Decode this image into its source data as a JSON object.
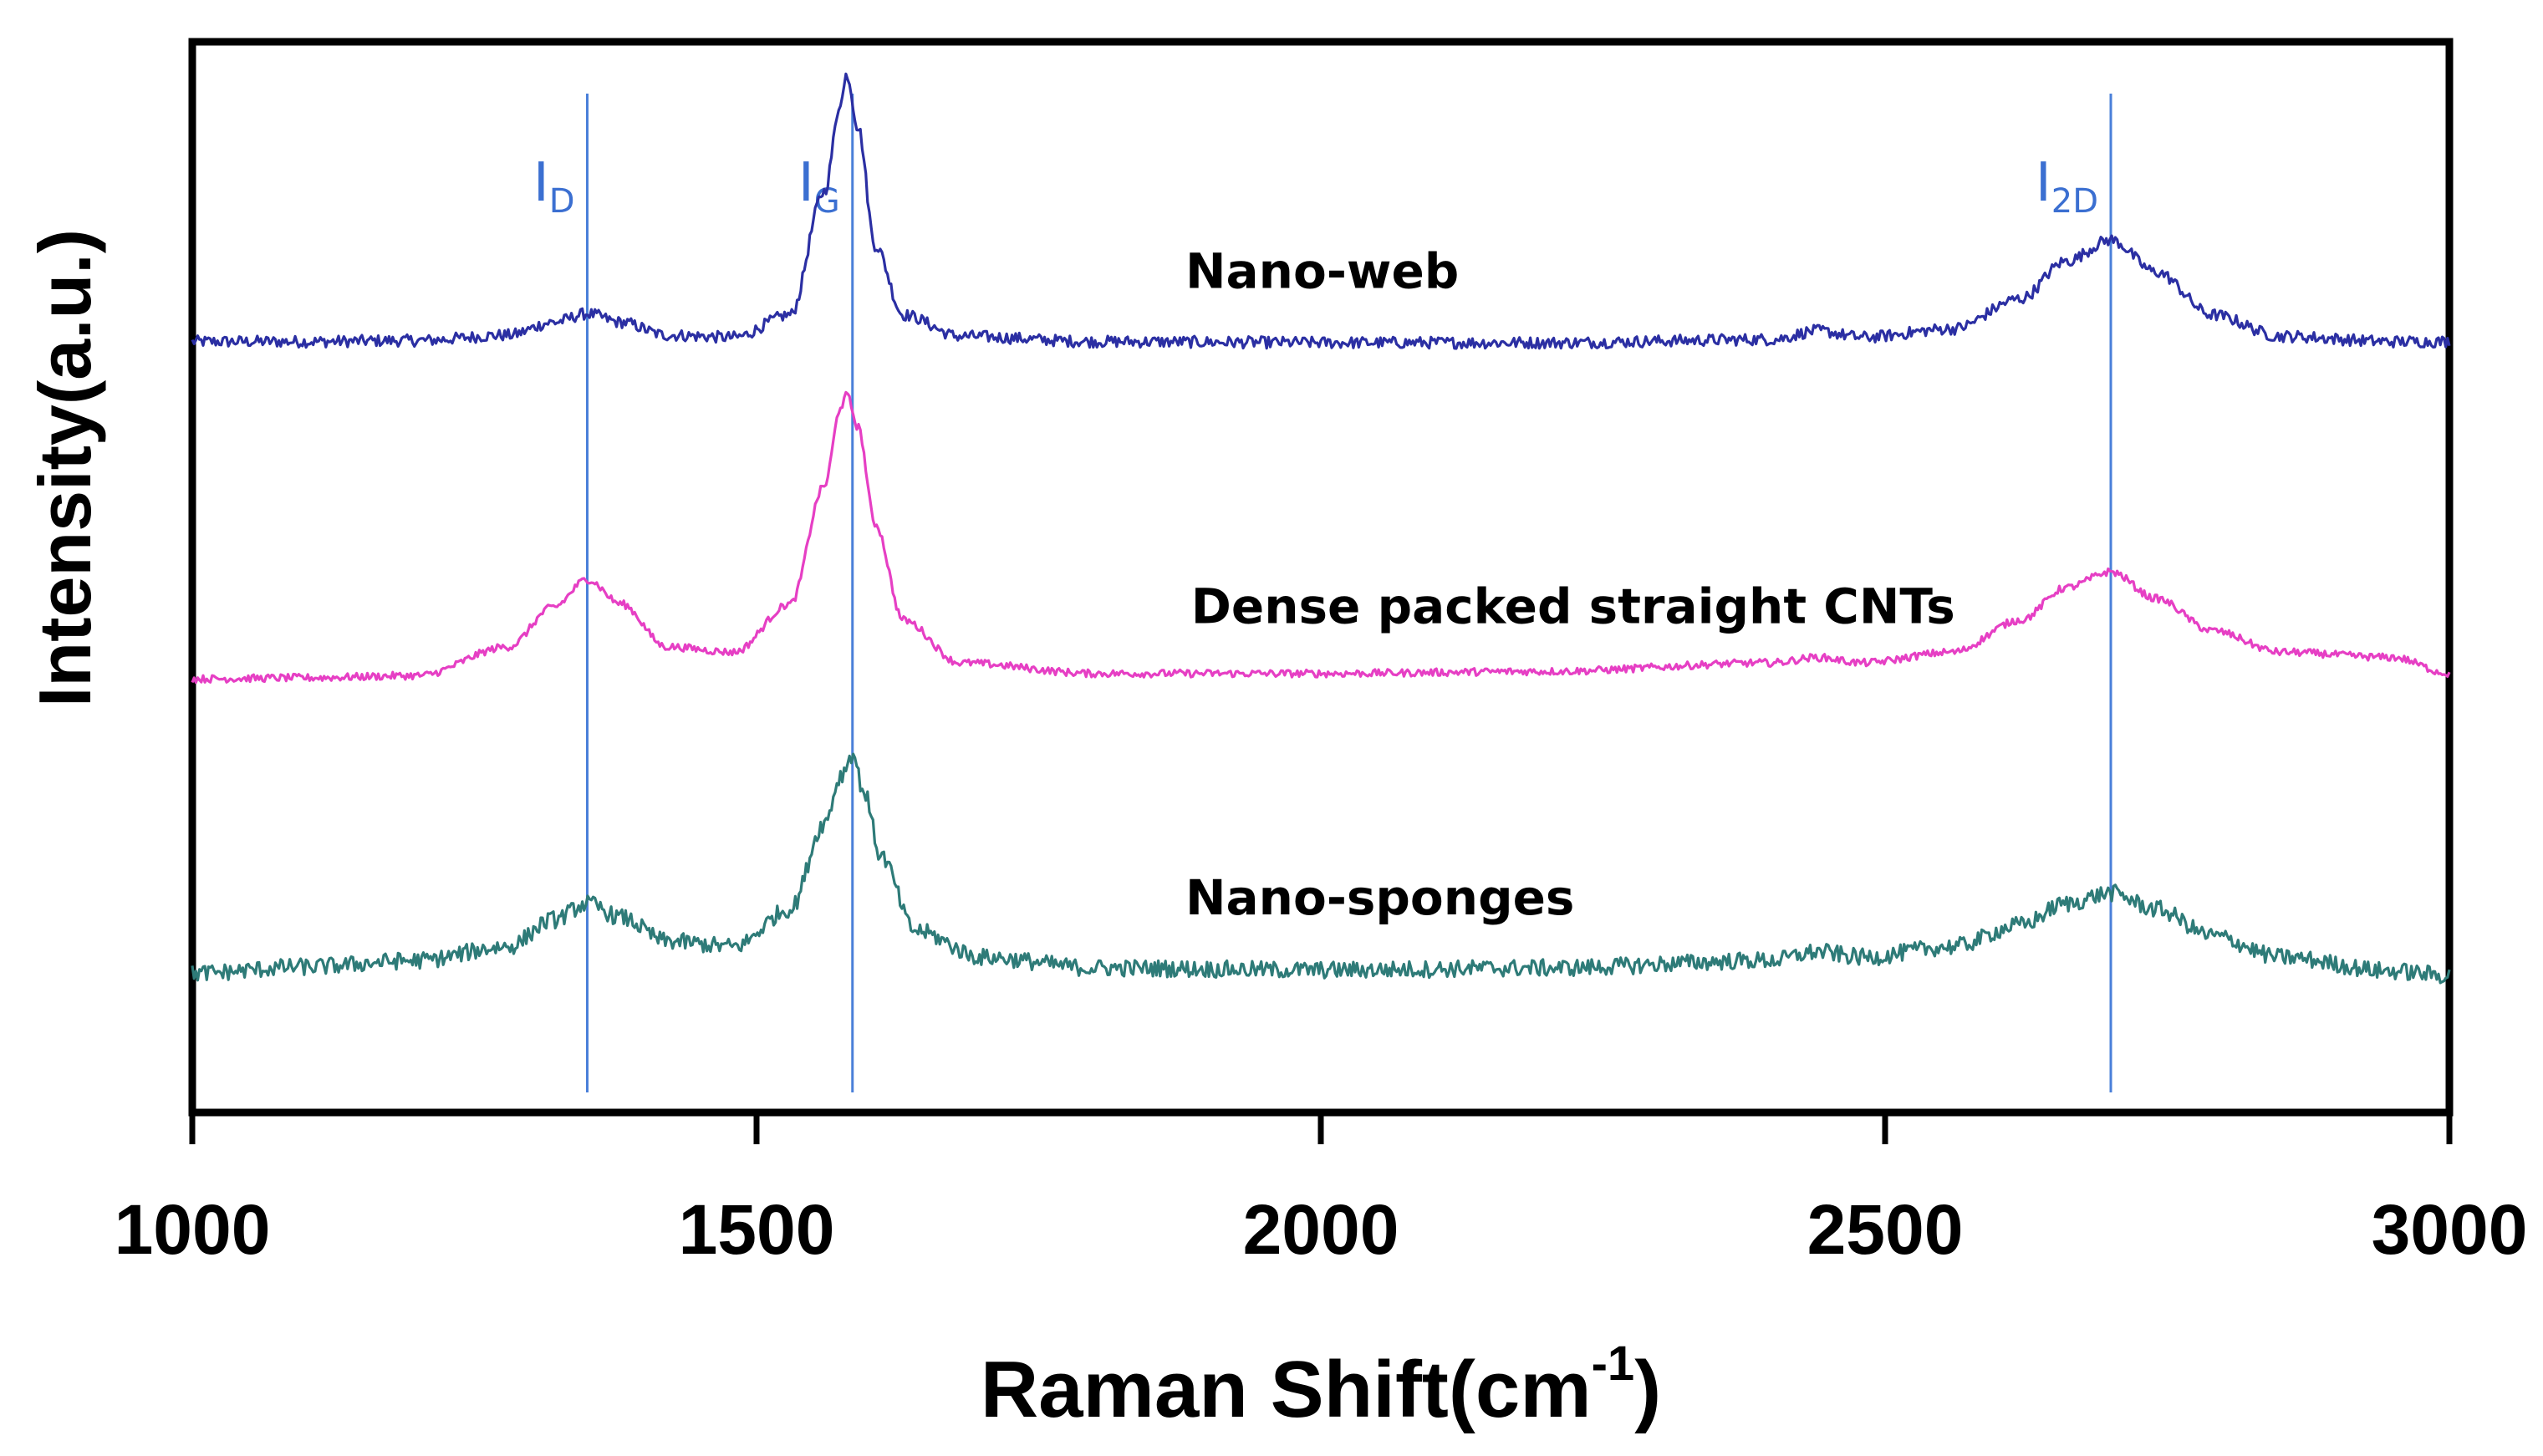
{
  "chart_data": {
    "type": "line",
    "title": "",
    "xlabel": "Raman Shift(cm",
    "xlabel_superscript": "-1",
    "xlabel_suffix": ")",
    "ylabel": "Intensity(a.u.)",
    "xlim": [
      1000,
      3000
    ],
    "ylim": [
      0,
      10
    ],
    "xticks": [
      1000,
      1500,
      2000,
      2500,
      3000
    ],
    "xtick_labels": [
      "1000",
      "1500",
      "2000",
      "2500",
      "3000"
    ],
    "grid": false,
    "peak_lines": [
      {
        "name": "I",
        "sub": "D",
        "x": 1350
      },
      {
        "name": "I",
        "sub": "G",
        "x": 1585
      },
      {
        "name": "I",
        "sub": "2D",
        "x": 2700
      }
    ],
    "series": [
      {
        "name": "Nano-web",
        "color": "#2b2fa3",
        "baseline": 7.2,
        "noise": 0.055,
        "label_x": 1880,
        "label_y": 7.7,
        "points": [
          [
            1000,
            7.2
          ],
          [
            1100,
            7.2
          ],
          [
            1200,
            7.21
          ],
          [
            1280,
            7.26
          ],
          [
            1320,
            7.38
          ],
          [
            1350,
            7.46
          ],
          [
            1380,
            7.38
          ],
          [
            1420,
            7.26
          ],
          [
            1480,
            7.24
          ],
          [
            1530,
            7.45
          ],
          [
            1560,
            8.6
          ],
          [
            1575,
            9.45
          ],
          [
            1580,
            9.7
          ],
          [
            1590,
            9.2
          ],
          [
            1605,
            8.1
          ],
          [
            1630,
            7.45
          ],
          [
            1680,
            7.25
          ],
          [
            1800,
            7.2
          ],
          [
            2000,
            7.19
          ],
          [
            2200,
            7.19
          ],
          [
            2400,
            7.22
          ],
          [
            2440,
            7.3
          ],
          [
            2480,
            7.24
          ],
          [
            2560,
            7.32
          ],
          [
            2620,
            7.6
          ],
          [
            2660,
            7.95
          ],
          [
            2700,
            8.15
          ],
          [
            2740,
            7.85
          ],
          [
            2790,
            7.45
          ],
          [
            2850,
            7.25
          ],
          [
            2950,
            7.2
          ],
          [
            3000,
            7.2
          ]
        ]
      },
      {
        "name": "Dense packed straight CNTs",
        "color": "#e63fc4",
        "baseline": 4.05,
        "noise": 0.035,
        "label_x": 1885,
        "label_y": 4.57,
        "points": [
          [
            1000,
            4.05
          ],
          [
            1100,
            4.06
          ],
          [
            1200,
            4.08
          ],
          [
            1280,
            4.35
          ],
          [
            1320,
            4.72
          ],
          [
            1350,
            4.98
          ],
          [
            1380,
            4.75
          ],
          [
            1420,
            4.35
          ],
          [
            1480,
            4.3
          ],
          [
            1530,
            4.75
          ],
          [
            1560,
            5.85
          ],
          [
            1575,
            6.6
          ],
          [
            1580,
            6.7
          ],
          [
            1590,
            6.4
          ],
          [
            1605,
            5.5
          ],
          [
            1630,
            4.6
          ],
          [
            1680,
            4.2
          ],
          [
            1800,
            4.1
          ],
          [
            2000,
            4.1
          ],
          [
            2200,
            4.12
          ],
          [
            2400,
            4.2
          ],
          [
            2440,
            4.25
          ],
          [
            2480,
            4.2
          ],
          [
            2560,
            4.3
          ],
          [
            2620,
            4.6
          ],
          [
            2660,
            4.9
          ],
          [
            2700,
            5.05
          ],
          [
            2740,
            4.8
          ],
          [
            2790,
            4.5
          ],
          [
            2850,
            4.3
          ],
          [
            2950,
            4.25
          ],
          [
            3000,
            4.1
          ]
        ]
      },
      {
        "name": "Nano-sponges",
        "color": "#2e7b78",
        "baseline": 1.3,
        "noise": 0.08,
        "label_x": 1880,
        "label_y": 1.85,
        "points": [
          [
            1000,
            1.3
          ],
          [
            1100,
            1.36
          ],
          [
            1200,
            1.42
          ],
          [
            1280,
            1.55
          ],
          [
            1320,
            1.8
          ],
          [
            1350,
            1.95
          ],
          [
            1380,
            1.82
          ],
          [
            1420,
            1.6
          ],
          [
            1480,
            1.55
          ],
          [
            1530,
            1.9
          ],
          [
            1560,
            2.7
          ],
          [
            1575,
            3.15
          ],
          [
            1585,
            3.35
          ],
          [
            1595,
            3.0
          ],
          [
            1610,
            2.4
          ],
          [
            1640,
            1.7
          ],
          [
            1700,
            1.45
          ],
          [
            1800,
            1.35
          ],
          [
            2000,
            1.33
          ],
          [
            2200,
            1.35
          ],
          [
            2400,
            1.42
          ],
          [
            2440,
            1.5
          ],
          [
            2480,
            1.45
          ],
          [
            2560,
            1.55
          ],
          [
            2620,
            1.75
          ],
          [
            2660,
            1.95
          ],
          [
            2700,
            2.05
          ],
          [
            2740,
            1.9
          ],
          [
            2790,
            1.65
          ],
          [
            2850,
            1.45
          ],
          [
            2950,
            1.32
          ],
          [
            3000,
            1.28
          ]
        ]
      }
    ]
  }
}
